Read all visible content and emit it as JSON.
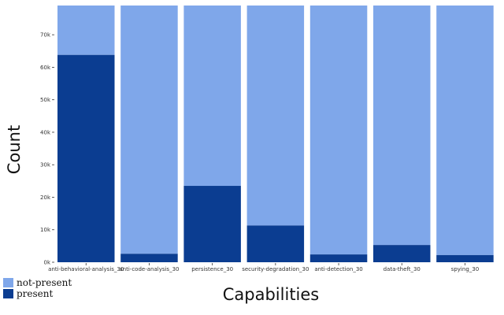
{
  "chart_data": {
    "type": "bar",
    "stacked": true,
    "normalized_total": 79000,
    "categories": [
      "anti-behavioral-analysis_30",
      "anti-code-analysis_30",
      "persistence_30",
      "security-degradation_30",
      "anti-detection_30",
      "data-theft_30",
      "spying_30"
    ],
    "series": [
      {
        "name": "present",
        "color": "#0b3d91",
        "values": [
          63800,
          2600,
          23500,
          11300,
          2400,
          5300,
          2200
        ]
      },
      {
        "name": "not-present",
        "color": "#7fa7ea",
        "values": [
          15200,
          76400,
          55500,
          67700,
          76600,
          73700,
          76800
        ]
      }
    ],
    "xlabel": "Capabilities",
    "ylabel": "Count",
    "ylim": [
      0,
      79000
    ],
    "yticks": [
      0,
      10000,
      20000,
      30000,
      40000,
      50000,
      60000,
      70000
    ],
    "ytick_labels": [
      "0k",
      "10k",
      "20k",
      "30k",
      "40k",
      "50k",
      "60k",
      "70k"
    ],
    "grid": false,
    "legend": {
      "placement": "bottom-left",
      "entries": [
        "not-present",
        "present"
      ]
    }
  }
}
